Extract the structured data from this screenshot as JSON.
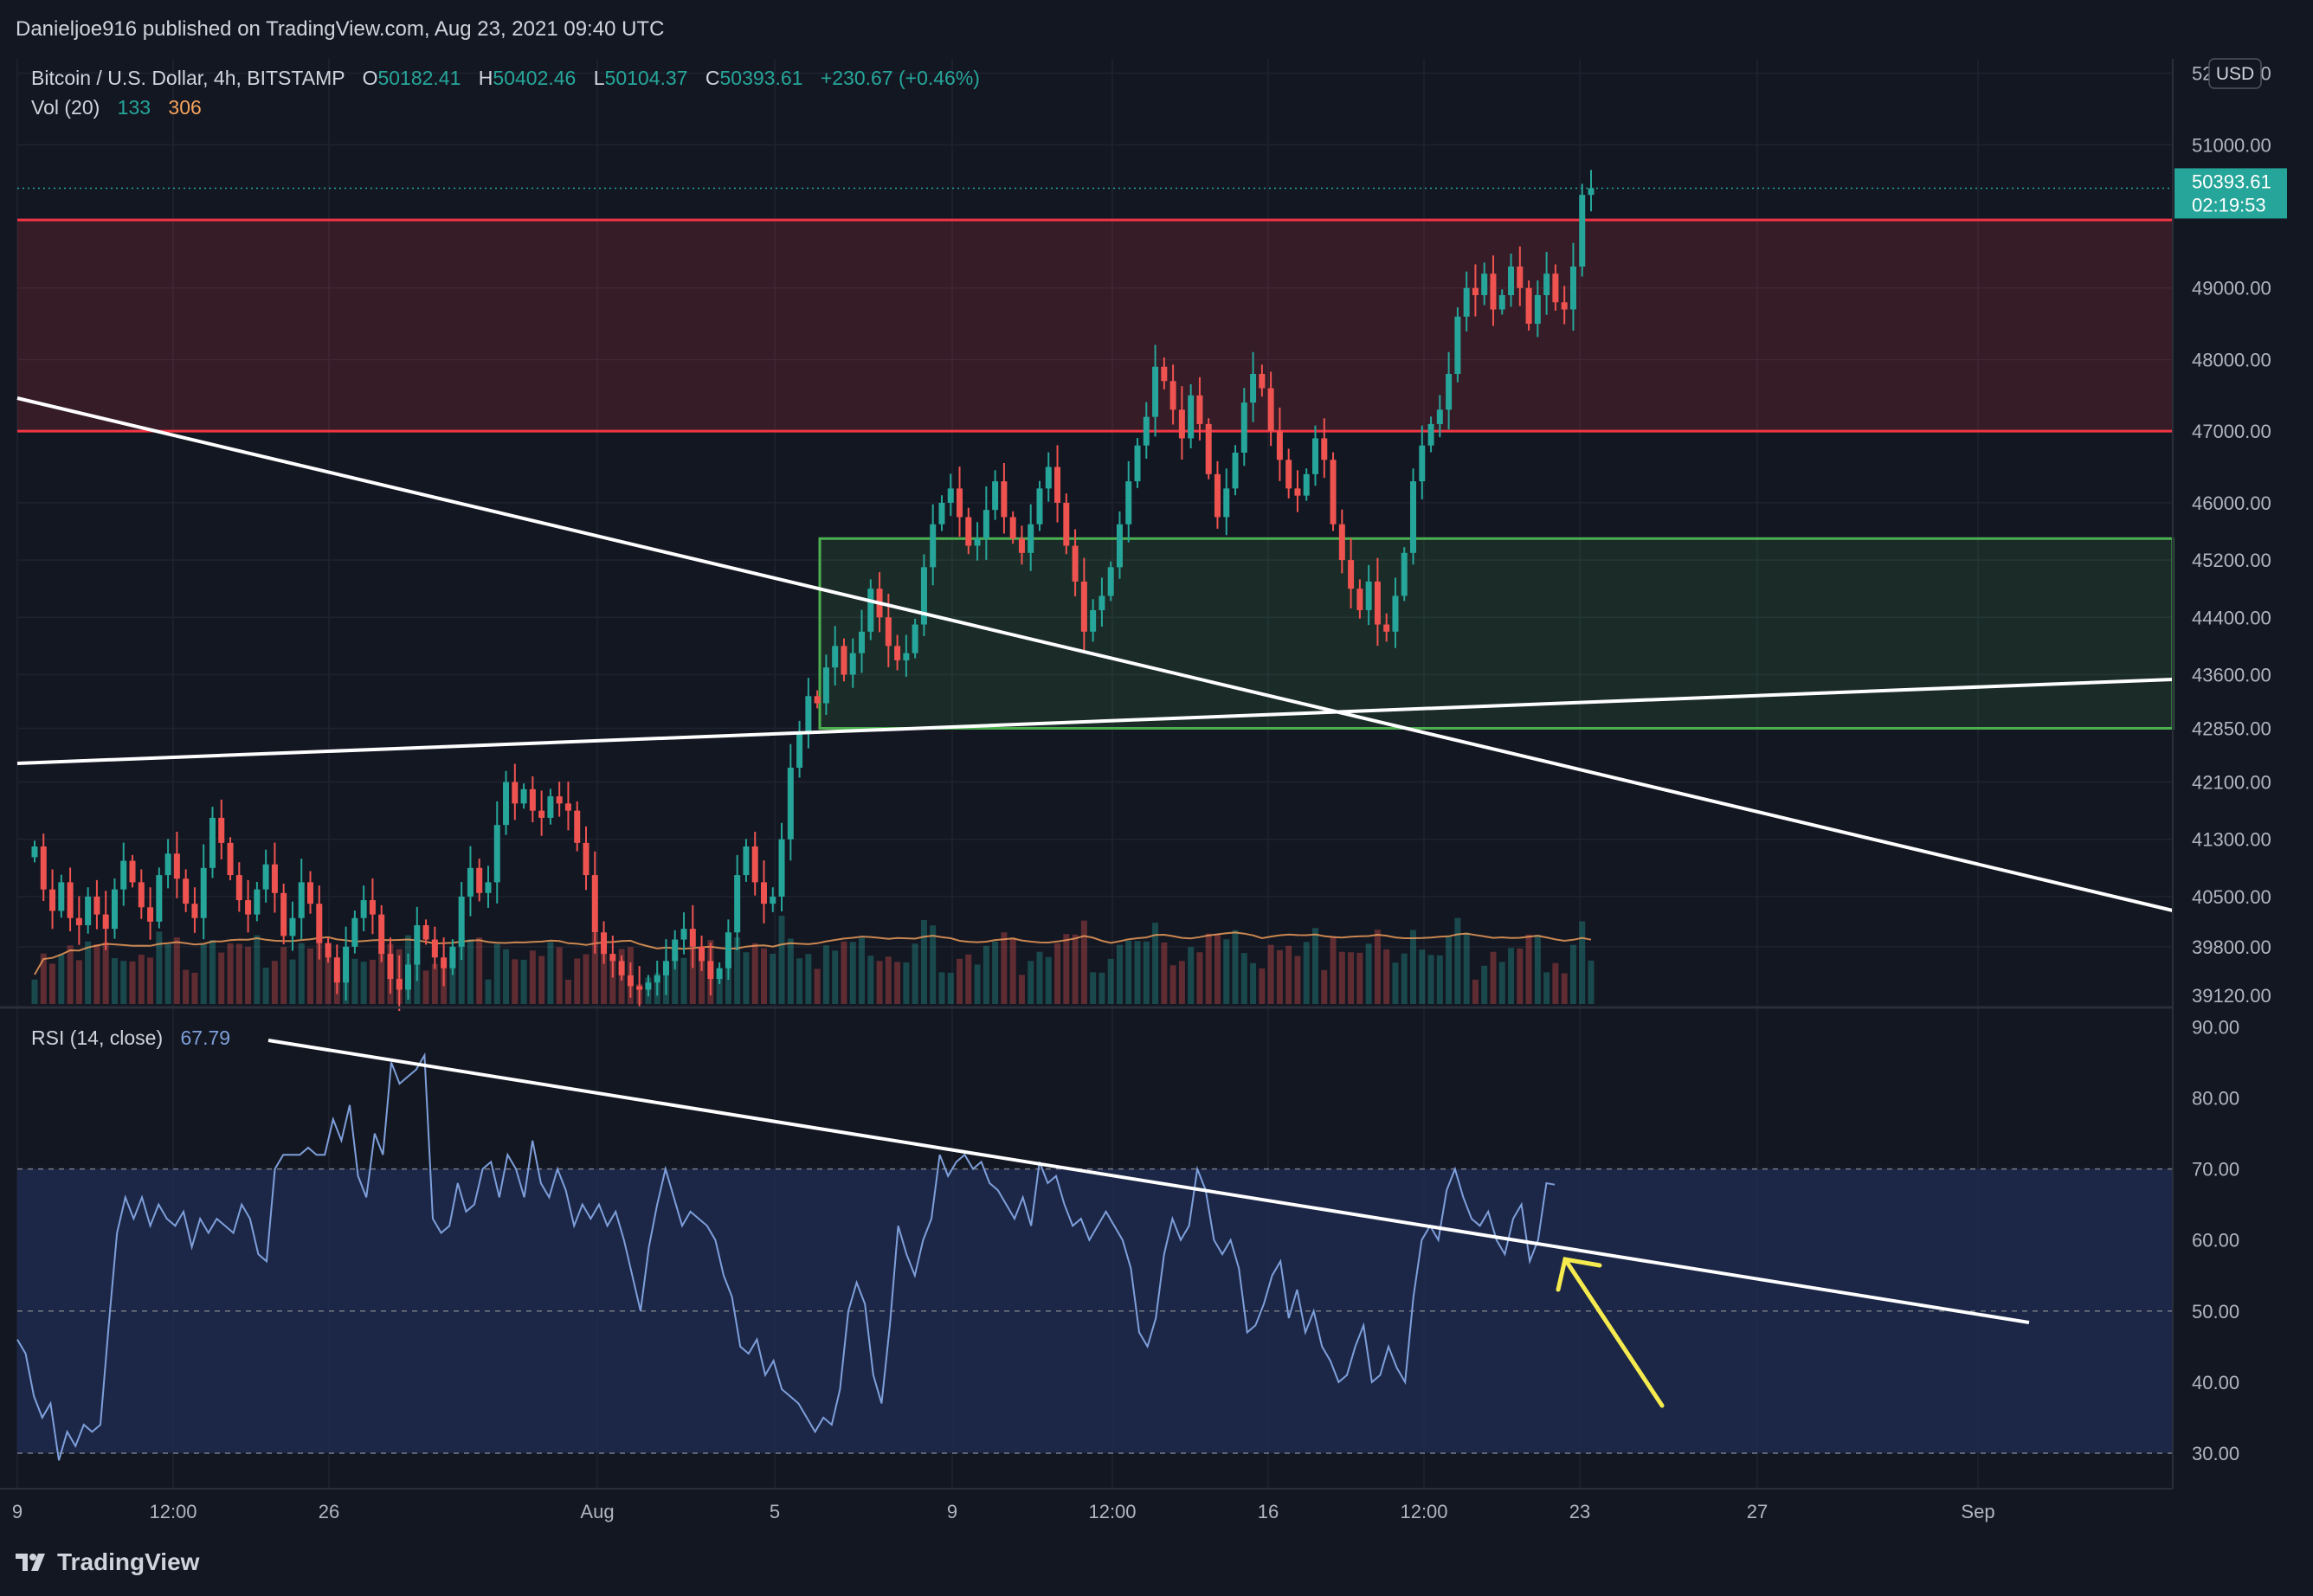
{
  "header": {
    "publisher_line": "Danieljoe916 published on TradingView.com, Aug 23, 2021 09:40 UTC"
  },
  "legend": {
    "title": "Bitcoin / U.S. Dollar, 4h, BITSTAMP",
    "open_label": "O",
    "open": "50182.41",
    "high_label": "H",
    "high": "50402.46",
    "low_label": "L",
    "low": "50104.37",
    "close_label": "C",
    "close": "50393.61",
    "change": "+230.67 (+0.46%)",
    "vol_label": "Vol (20)",
    "vol_value": "133",
    "vol_ma": "306",
    "rsi_label": "RSI (14, close)",
    "rsi_value": "67.79"
  },
  "price_axis": {
    "currency": "USD",
    "ticks": [
      "52000.00",
      "51000.00",
      "49000.00",
      "48000.00",
      "47000.00",
      "46000.00",
      "45200.00",
      "44400.00",
      "43600.00",
      "42850.00",
      "42100.00",
      "41300.00",
      "40500.00",
      "39800.00",
      "39120.00"
    ],
    "last_price": "50393.61",
    "countdown": "02:19:53"
  },
  "rsi_axis": {
    "ticks": [
      "90.00",
      "80.00",
      "70.00",
      "60.00",
      "50.00",
      "40.00",
      "30.00"
    ]
  },
  "time_axis": {
    "ticks": [
      "9",
      "12:00",
      "26",
      "Aug",
      "5",
      "9",
      "12:00",
      "16",
      "12:00",
      "23",
      "27",
      "Sep"
    ]
  },
  "footer": {
    "brand": "TradingView"
  },
  "colors": {
    "background": "#131722",
    "up": "#26a69a",
    "down": "#ef5350",
    "resistance_zone": "#f23645",
    "support_zone": "#4caf50",
    "rsi_line": "#7e9fda",
    "rsi_band": "#1e2a4d",
    "arrow": "#f5eb4f",
    "trendline": "#ffffff"
  },
  "chart_data": [
    {
      "type": "candlestick",
      "title": "Bitcoin / U.S. Dollar, 4h, BITSTAMP",
      "ylim": [
        39000,
        52200
      ],
      "close_series": [
        41200,
        40600,
        40300,
        40700,
        40200,
        40100,
        40500,
        40250,
        40050,
        40600,
        41000,
        40700,
        40350,
        40150,
        40800,
        41100,
        40750,
        40400,
        40200,
        40900,
        41600,
        41250,
        40800,
        40450,
        40250,
        40600,
        40950,
        40550,
        39950,
        40200,
        40700,
        40400,
        39850,
        39650,
        39300,
        39800,
        40200,
        40450,
        40250,
        39700,
        39350,
        39200,
        39550,
        40100,
        39900,
        39650,
        39500,
        39800,
        40500,
        40900,
        40550,
        40700,
        41500,
        42100,
        41800,
        42000,
        41700,
        41600,
        41900,
        41800,
        41700,
        41250,
        40800,
        40000,
        39700,
        39600,
        39400,
        39250,
        39200,
        39300,
        39400,
        39600,
        39900,
        40050,
        39800,
        39600,
        39350,
        39500,
        40000,
        40800,
        41200,
        40700,
        40400,
        40500,
        41300,
        42300,
        42800,
        43300,
        43200,
        43700,
        44000,
        43600,
        43900,
        44200,
        44800,
        44400,
        44000,
        43800,
        43900,
        44300,
        45100,
        45700,
        46000,
        46200,
        45800,
        45400,
        45500,
        45900,
        46300,
        45800,
        45500,
        45300,
        45700,
        46200,
        46500,
        46000,
        45400,
        44900,
        44200,
        44500,
        44700,
        45100,
        45700,
        46300,
        46800,
        47200,
        47900,
        47700,
        47300,
        46900,
        47500,
        47100,
        46400,
        45800,
        46200,
        46700,
        47400,
        47800,
        47600,
        47000,
        46600,
        46200,
        46100,
        46400,
        46900,
        46600,
        45700,
        45200,
        44800,
        44500,
        44900,
        44300,
        44200,
        44700,
        45300,
        46300,
        46800,
        47100,
        47300,
        47800,
        48600,
        49000,
        48900,
        49200,
        48700,
        48900,
        49300,
        49000,
        48500,
        48900,
        49200,
        48800,
        48700,
        49300,
        50300,
        50393
      ],
      "volume": {
        "label": "Vol (20)",
        "last": 133,
        "ma": 306
      },
      "resistance_zone": [
        47000,
        49950
      ],
      "support_zone": [
        42850,
        45500
      ],
      "x_axis_ticks": [
        "9",
        "12:00",
        "26",
        "Aug",
        "5",
        "9",
        "12:00",
        "16",
        "12:00",
        "23",
        "27",
        "Sep"
      ]
    },
    {
      "type": "line",
      "title": "RSI (14, close)",
      "ylim": [
        25,
        92
      ],
      "band": [
        30,
        70
      ],
      "last": 67.79,
      "values": [
        46,
        44,
        38,
        35,
        37,
        29,
        33,
        31,
        34,
        33,
        34,
        48,
        61,
        66,
        63,
        66,
        62,
        65,
        63,
        62,
        64,
        59,
        63,
        61,
        63,
        62,
        61,
        65,
        63,
        58,
        57,
        70,
        72,
        72,
        72,
        73,
        72,
        72,
        77,
        74,
        79,
        69,
        66,
        75,
        72,
        85,
        82,
        83,
        84,
        86,
        63,
        61,
        62,
        68,
        64,
        65,
        70,
        71,
        66,
        72,
        70,
        66,
        74,
        68,
        66,
        70,
        67,
        62,
        65,
        63,
        65,
        62,
        64,
        60,
        55,
        50,
        59,
        65,
        70,
        66,
        62,
        64,
        63,
        62,
        60,
        55,
        52,
        45,
        44,
        46,
        41,
        43,
        39,
        38,
        37,
        35,
        33,
        35,
        34,
        39,
        50,
        54,
        51,
        41,
        37,
        48,
        62,
        58,
        55,
        60,
        63,
        72,
        69,
        71,
        72,
        70,
        71,
        68,
        67,
        65,
        63,
        66,
        62,
        71,
        68,
        69,
        65,
        62,
        63,
        60,
        62,
        64,
        62,
        60,
        56,
        47,
        45,
        49,
        58,
        63,
        60,
        62,
        70,
        67,
        60,
        58,
        60,
        56,
        47,
        48,
        51,
        55,
        57,
        49,
        53,
        47,
        50,
        45,
        43,
        40,
        41,
        45,
        48,
        40,
        41,
        45,
        42,
        40,
        52,
        60,
        62,
        60,
        67,
        70,
        66,
        63,
        62,
        64,
        60,
        58,
        63,
        65,
        57,
        60,
        68,
        67.79
      ],
      "x_axis_ticks": [
        "9",
        "12:00",
        "26",
        "Aug",
        "5",
        "9",
        "12:00",
        "16",
        "12:00",
        "23",
        "27",
        "Sep"
      ]
    }
  ]
}
